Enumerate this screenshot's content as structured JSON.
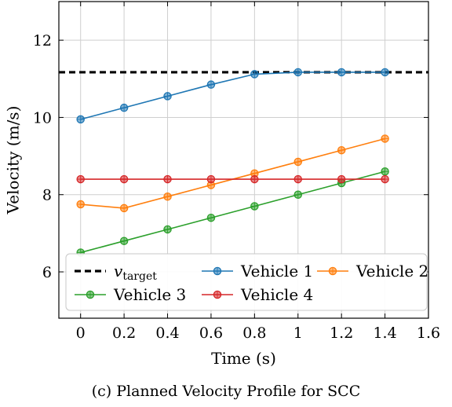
{
  "chart_data": {
    "type": "line",
    "xlabel": "Time (s)",
    "ylabel": "Velocity (m/s)",
    "xlim": [
      -0.1,
      1.6
    ],
    "ylim": [
      4.8,
      13.0
    ],
    "xticks": [
      0,
      0.2,
      0.4,
      0.6,
      0.8,
      1,
      1.2,
      1.4,
      1.6
    ],
    "xtick_labels": [
      "0",
      "0.2",
      "0.4",
      "0.6",
      "0.8",
      "1",
      "1.2",
      "1.4",
      "1.6"
    ],
    "yticks": [
      6,
      8,
      10,
      12
    ],
    "ytick_labels": [
      "6",
      "8",
      "10",
      "12"
    ],
    "grid": true,
    "legend_position": "bottom",
    "target_line": {
      "label_main": "v",
      "label_sub": "target",
      "y": 11.17,
      "color": "#000000",
      "style": "dashed"
    },
    "x": [
      0,
      0.2,
      0.4,
      0.6,
      0.8,
      1.0,
      1.2,
      1.4
    ],
    "series": [
      {
        "name": "Vehicle 1",
        "color": "#1f77b4",
        "values": [
          9.95,
          10.25,
          10.55,
          10.85,
          11.12,
          11.17,
          11.17,
          11.17
        ]
      },
      {
        "name": "Vehicle 2",
        "color": "#ff7f0e",
        "values": [
          7.75,
          7.65,
          7.95,
          8.25,
          8.55,
          8.85,
          9.15,
          9.45
        ]
      },
      {
        "name": "Vehicle 3",
        "color": "#2ca02c",
        "values": [
          6.5,
          6.8,
          7.1,
          7.4,
          7.7,
          8.0,
          8.3,
          8.6
        ]
      },
      {
        "name": "Vehicle 4",
        "color": "#d62728",
        "values": [
          8.4,
          8.4,
          8.4,
          8.4,
          8.4,
          8.4,
          8.4,
          8.4
        ]
      }
    ]
  },
  "caption": "(c) Planned Velocity Profile for SCC"
}
